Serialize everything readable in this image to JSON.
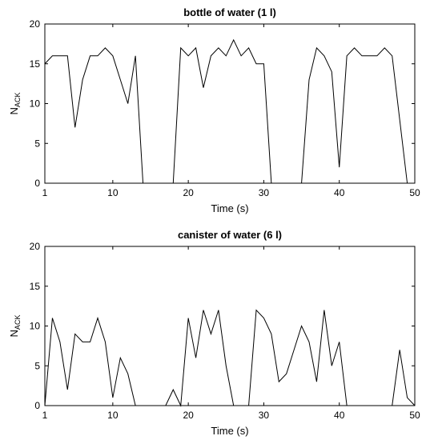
{
  "chart_data": [
    {
      "type": "line",
      "title": "bottle of water (1 l)",
      "xlabel": "Time (s)",
      "ylabel": "N",
      "ylabel_subscript": "ACK",
      "xlim": [
        1,
        50
      ],
      "ylim": [
        0,
        20
      ],
      "xticks": [
        1,
        10,
        20,
        30,
        40,
        50
      ],
      "yticks": [
        0,
        5,
        10,
        15,
        20
      ],
      "grid": false,
      "x": [
        1,
        2,
        3,
        4,
        5,
        6,
        7,
        8,
        9,
        10,
        11,
        12,
        13,
        14,
        15,
        16,
        17,
        18,
        19,
        20,
        21,
        22,
        23,
        24,
        25,
        26,
        27,
        28,
        29,
        30,
        31,
        32,
        33,
        34,
        35,
        36,
        37,
        38,
        39,
        40,
        41,
        42,
        43,
        44,
        45,
        46,
        47,
        48,
        49
      ],
      "series": [
        {
          "values": [
            15,
            16,
            16,
            16,
            7,
            13,
            16,
            16,
            17,
            16,
            13,
            10,
            16,
            0,
            0,
            0,
            0,
            0,
            17,
            16,
            17,
            12,
            16,
            17,
            16,
            18,
            16,
            17,
            15,
            15,
            0,
            0,
            0,
            0,
            0,
            13,
            17,
            16,
            14,
            2,
            16,
            17,
            16,
            16,
            16,
            17,
            16,
            8,
            0
          ]
        }
      ]
    },
    {
      "type": "line",
      "title": "canister of water (6 l)",
      "xlabel": "Time (s)",
      "ylabel": "N",
      "ylabel_subscript": "ACK",
      "xlim": [
        1,
        50
      ],
      "ylim": [
        0,
        20
      ],
      "xticks": [
        1,
        10,
        20,
        30,
        40,
        50
      ],
      "yticks": [
        0,
        5,
        10,
        15,
        20
      ],
      "grid": false,
      "x": [
        1,
        2,
        3,
        4,
        5,
        6,
        7,
        8,
        9,
        10,
        11,
        12,
        13,
        14,
        15,
        16,
        17,
        18,
        19,
        20,
        21,
        22,
        23,
        24,
        25,
        26,
        27,
        28,
        29,
        30,
        31,
        32,
        33,
        34,
        35,
        36,
        37,
        38,
        39,
        40,
        41,
        42,
        43,
        44,
        45,
        46,
        47,
        48,
        49,
        50
      ],
      "series": [
        {
          "values": [
            0,
            11,
            8,
            2,
            9,
            8,
            8,
            11,
            8,
            1,
            6,
            4,
            0,
            0,
            0,
            0,
            0,
            2,
            0,
            11,
            6,
            12,
            9,
            12,
            5,
            0,
            0,
            0,
            12,
            11,
            9,
            3,
            4,
            7,
            10,
            8,
            3,
            12,
            5,
            8,
            0,
            0,
            0,
            0,
            0,
            0,
            0,
            7,
            1,
            0
          ]
        }
      ]
    }
  ]
}
